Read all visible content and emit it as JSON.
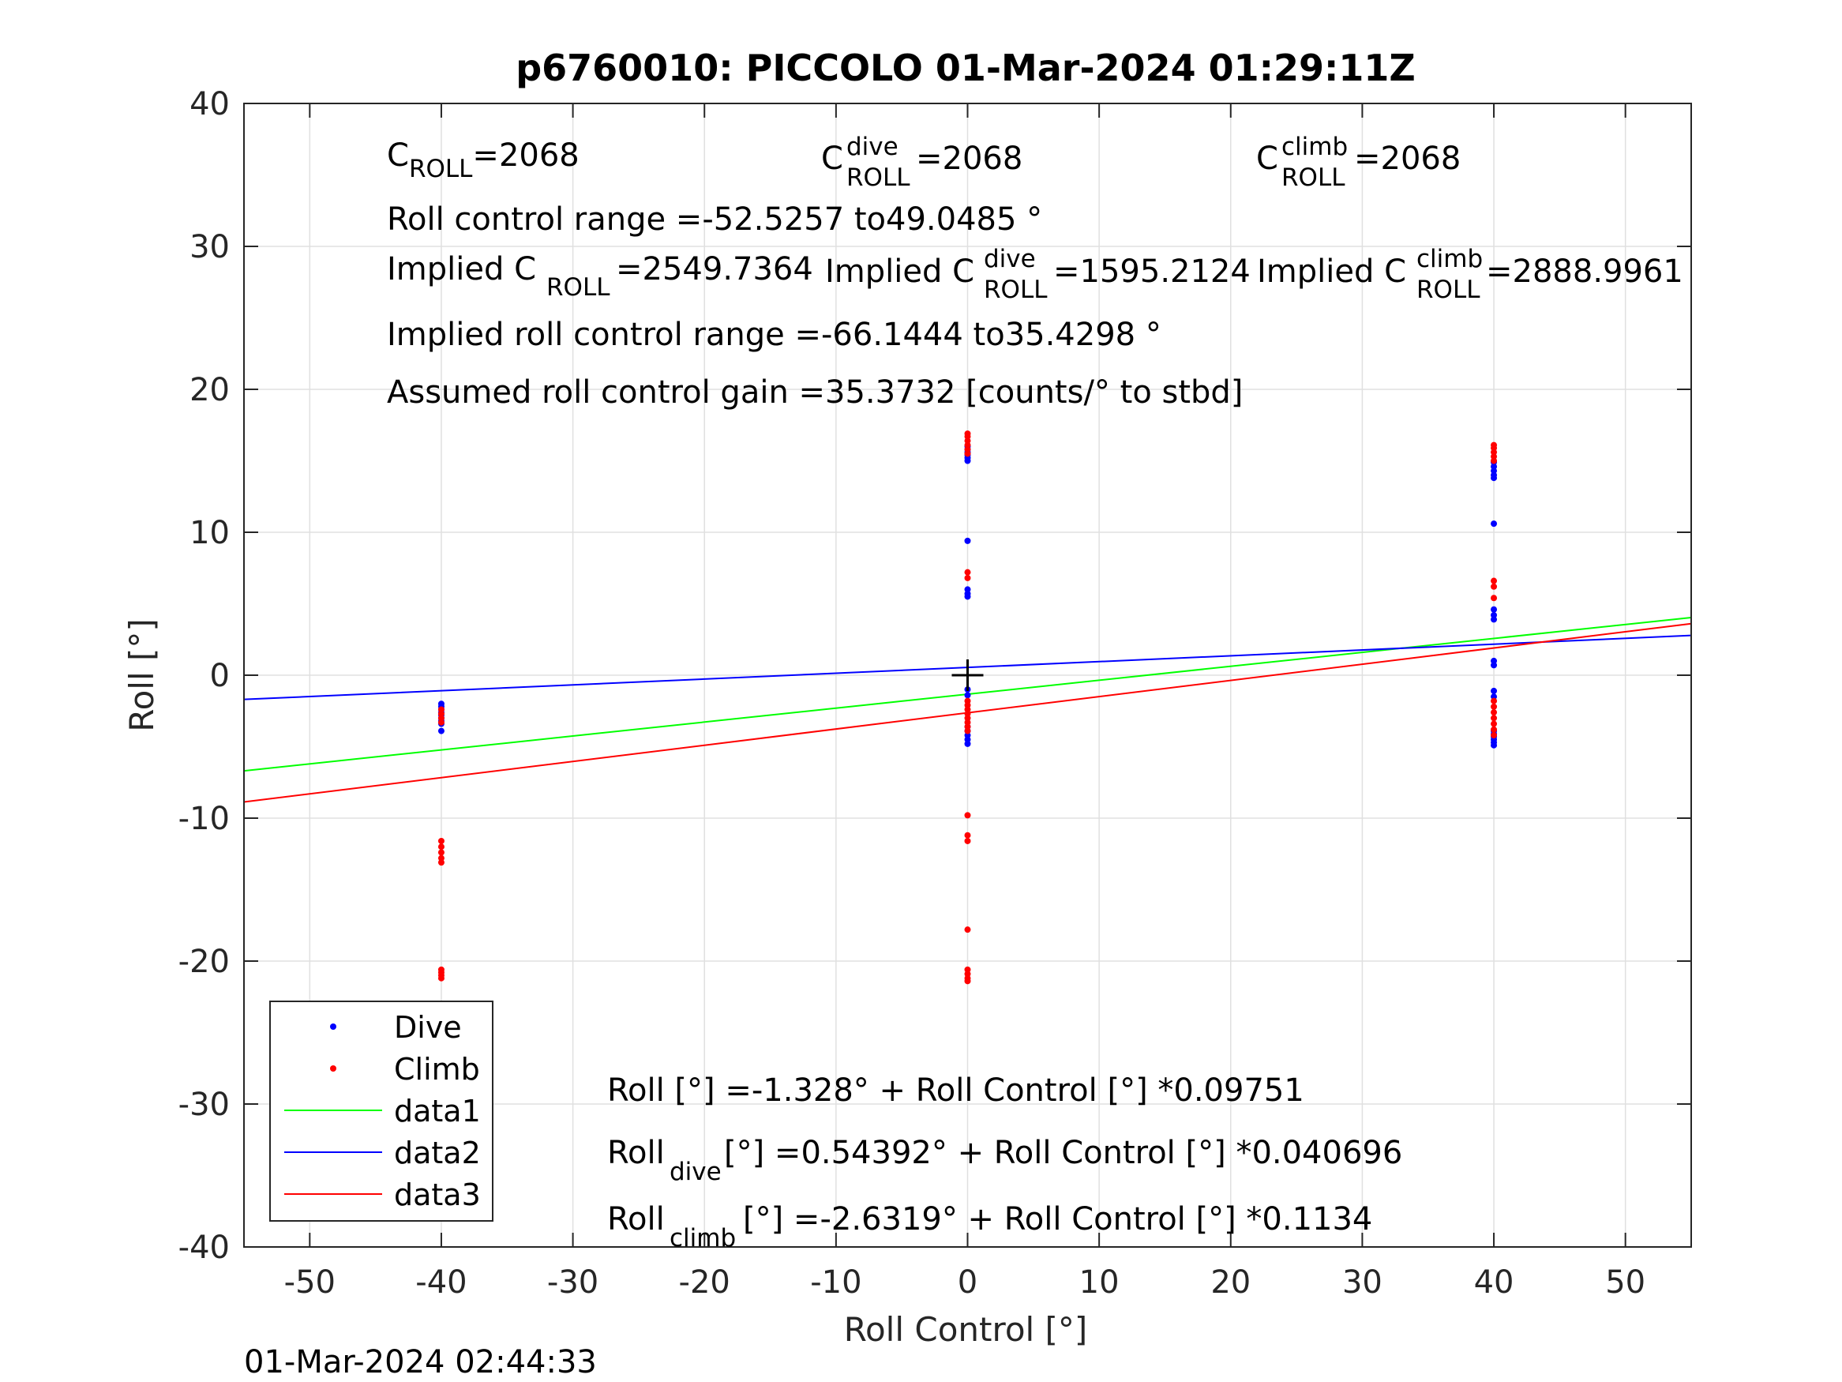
{
  "chart_data": {
    "type": "scatter",
    "title": "p6760010: PICCOLO 01-Mar-2024 01:29:11Z",
    "xlabel": "Roll Control [°]",
    "ylabel": "Roll [°]",
    "xlim": [
      -55,
      55
    ],
    "ylim": [
      -40,
      40
    ],
    "xticks": [
      -50,
      -40,
      -30,
      -20,
      -10,
      0,
      10,
      20,
      30,
      40,
      50
    ],
    "yticks": [
      -40,
      -30,
      -20,
      -10,
      0,
      10,
      20,
      30,
      40
    ],
    "grid": true,
    "legend_position": "bottom-left",
    "timestamp": "01-Mar-2024 02:44:33",
    "center_marker": {
      "x": 0,
      "y": 0,
      "color": "#000000"
    },
    "series": [
      {
        "name": "Dive",
        "kind": "points",
        "color": "#0000ff",
        "points": [
          [
            -40,
            -2.0
          ],
          [
            -40,
            -2.2
          ],
          [
            -40,
            -2.4
          ],
          [
            -40,
            -2.6
          ],
          [
            -40,
            -2.8
          ],
          [
            -40,
            -3.0
          ],
          [
            -40,
            -3.2
          ],
          [
            -40,
            -3.4
          ],
          [
            -40,
            -3.9
          ],
          [
            0,
            15.0
          ],
          [
            0,
            15.2
          ],
          [
            0,
            15.4
          ],
          [
            0,
            15.6
          ],
          [
            0,
            15.8
          ],
          [
            0,
            16.0
          ],
          [
            0,
            9.4
          ],
          [
            0,
            6.0
          ],
          [
            0,
            5.7
          ],
          [
            0,
            5.5
          ],
          [
            0,
            -1.0
          ],
          [
            0,
            -1.4
          ],
          [
            0,
            -3.6
          ],
          [
            0,
            -3.9
          ],
          [
            0,
            -4.2
          ],
          [
            0,
            -4.5
          ],
          [
            0,
            -4.8
          ],
          [
            40,
            13.8
          ],
          [
            40,
            14.0
          ],
          [
            40,
            14.3
          ],
          [
            40,
            14.6
          ],
          [
            40,
            14.9
          ],
          [
            40,
            10.6
          ],
          [
            40,
            4.6
          ],
          [
            40,
            4.2
          ],
          [
            40,
            3.9
          ],
          [
            40,
            1.0
          ],
          [
            40,
            0.7
          ],
          [
            40,
            -1.1
          ],
          [
            40,
            -1.5
          ],
          [
            40,
            -3.9
          ],
          [
            40,
            -4.1
          ],
          [
            40,
            -4.3
          ],
          [
            40,
            -4.5
          ],
          [
            40,
            -4.7
          ],
          [
            40,
            -4.9
          ]
        ]
      },
      {
        "name": "Climb",
        "kind": "points",
        "color": "#ff0000",
        "points": [
          [
            -40,
            -2.4
          ],
          [
            -40,
            -2.7
          ],
          [
            -40,
            -3.0
          ],
          [
            -40,
            -3.3
          ],
          [
            -40,
            -11.6
          ],
          [
            -40,
            -12.0
          ],
          [
            -40,
            -12.4
          ],
          [
            -40,
            -12.8
          ],
          [
            -40,
            -13.1
          ],
          [
            -40,
            -20.6
          ],
          [
            -40,
            -20.8
          ],
          [
            -40,
            -21.0
          ],
          [
            -40,
            -21.2
          ],
          [
            0,
            15.5
          ],
          [
            0,
            15.8
          ],
          [
            0,
            16.1
          ],
          [
            0,
            16.4
          ],
          [
            0,
            16.7
          ],
          [
            0,
            16.9
          ],
          [
            0,
            7.2
          ],
          [
            0,
            6.8
          ],
          [
            0,
            -1.8
          ],
          [
            0,
            -2.1
          ],
          [
            0,
            -2.4
          ],
          [
            0,
            -2.7
          ],
          [
            0,
            -3.0
          ],
          [
            0,
            -3.3
          ],
          [
            0,
            -3.6
          ],
          [
            0,
            -3.9
          ],
          [
            0,
            -9.8
          ],
          [
            0,
            -11.2
          ],
          [
            0,
            -11.6
          ],
          [
            0,
            -17.8
          ],
          [
            0,
            -20.6
          ],
          [
            0,
            -20.9
          ],
          [
            0,
            -21.2
          ],
          [
            0,
            -21.4
          ],
          [
            40,
            15.0
          ],
          [
            40,
            15.3
          ],
          [
            40,
            15.6
          ],
          [
            40,
            15.9
          ],
          [
            40,
            16.1
          ],
          [
            40,
            6.6
          ],
          [
            40,
            6.2
          ],
          [
            40,
            5.4
          ],
          [
            40,
            -1.8
          ],
          [
            40,
            -2.2
          ],
          [
            40,
            -2.6
          ],
          [
            40,
            -3.0
          ],
          [
            40,
            -3.4
          ],
          [
            40,
            -3.8
          ],
          [
            40,
            -4.2
          ]
        ]
      },
      {
        "name": "data1",
        "kind": "line",
        "color": "#00ff00",
        "intercept": -1.328,
        "slope": 0.09751
      },
      {
        "name": "data2",
        "kind": "line",
        "color": "#0000ff",
        "intercept": 0.54392,
        "slope": 0.040696
      },
      {
        "name": "data3",
        "kind": "line",
        "color": "#ff0000",
        "intercept": -2.6319,
        "slope": 0.1134
      }
    ],
    "annotations": {
      "c_roll": {
        "base": "C",
        "sub": "ROLL",
        "value": "=2068"
      },
      "c_roll_dive": {
        "base": "C",
        "sup": "dive",
        "sub": "ROLL",
        "value": " =2068"
      },
      "c_roll_climb": {
        "base": "C",
        "sup": "climb",
        "sub": "ROLL",
        "value": " =2068"
      },
      "roll_control_range": "Roll control range =-52.5257 to49.0485 °",
      "implied_c_roll": {
        "prefix": "Implied C",
        "sub": "ROLL",
        "value": " =2549.7364"
      },
      "implied_c_roll_dive": {
        "prefix": "Implied C",
        "sup": "dive",
        "sub": "ROLL",
        "value": " =1595.2124"
      },
      "implied_c_roll_climb": {
        "prefix": "Implied C",
        "sup": "climb",
        "sub": "ROLL",
        "value": " =2888.9961"
      },
      "implied_roll_control_range": "Implied roll control range =-66.1444 to35.4298 °",
      "assumed_gain": "Assumed roll control gain =35.3732 [counts/° to stbd]",
      "fit_all": "Roll [°] =-1.328° + Roll Control [°] *0.09751",
      "fit_dive": {
        "base": "Roll",
        "sub": "dive",
        "value": " [°] =0.54392° + Roll Control [°] *0.040696"
      },
      "fit_climb": {
        "base": "Roll",
        "sub": "climb",
        "value": " [°] =-2.6319° + Roll Control [°] *0.1134"
      }
    }
  }
}
